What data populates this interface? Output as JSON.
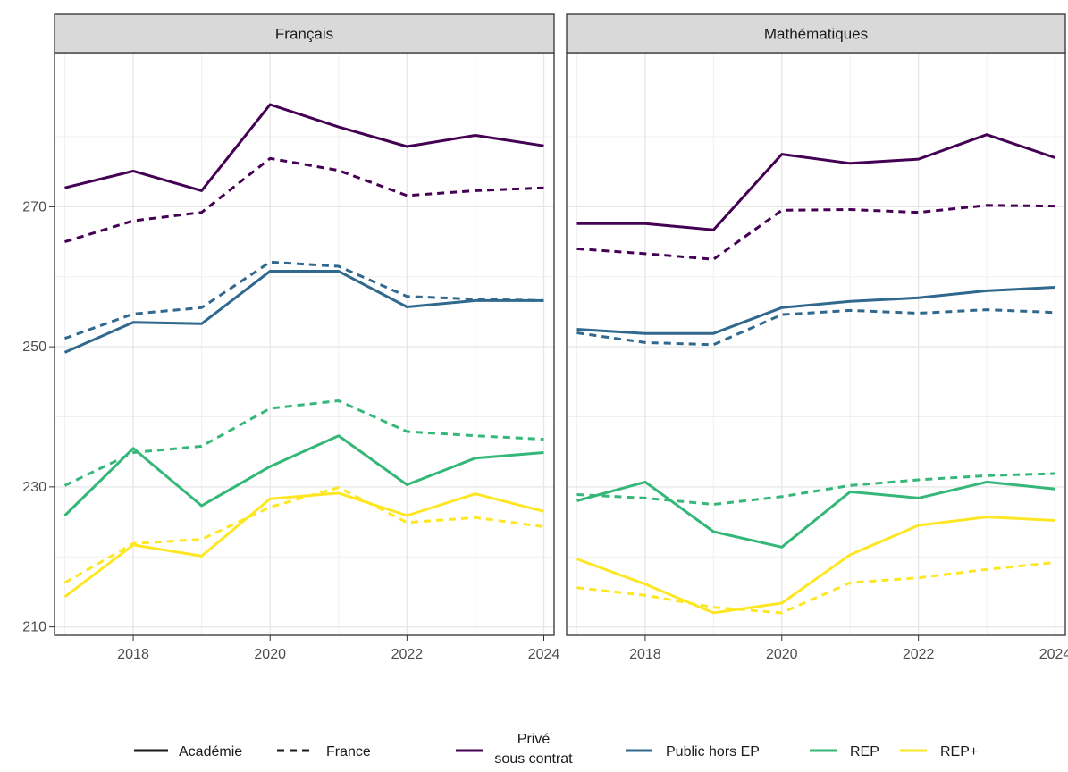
{
  "chart_data": {
    "type": "line",
    "x": [
      2017,
      2018,
      2019,
      2020,
      2021,
      2022,
      2023,
      2024
    ],
    "xticks": [
      2018,
      2020,
      2022,
      2024
    ],
    "xlim": [
      2016.85,
      2024.15
    ],
    "ylim": [
      208.8,
      292
    ],
    "yticks": [
      210,
      230,
      250,
      270
    ],
    "grid": true,
    "legend_position": "bottom",
    "colors": {
      "prive": "#440154",
      "public": "#31688e",
      "rep": "#35b779",
      "repplus": "#fde725"
    },
    "linetype_legend": [
      {
        "key": "solid",
        "label": "Académie"
      },
      {
        "key": "dashed",
        "label": "France"
      }
    ],
    "color_legend": [
      {
        "key": "prive",
        "label_lines": [
          "Privé",
          "sous contrat"
        ]
      },
      {
        "key": "public",
        "label_lines": [
          "Public hors EP"
        ]
      },
      {
        "key": "rep",
        "label_lines": [
          "REP"
        ]
      },
      {
        "key": "repplus",
        "label_lines": [
          "REP+"
        ]
      }
    ],
    "panels": [
      {
        "title": "Français",
        "series": [
          {
            "group": "prive",
            "linetype": "solid",
            "values": [
              272.7,
              275.1,
              272.3,
              284.6,
              281.4,
              278.6,
              280.2,
              278.7
            ]
          },
          {
            "group": "prive",
            "linetype": "dashed",
            "values": [
              265.0,
              268.0,
              269.2,
              276.9,
              275.2,
              271.6,
              272.3,
              272.7
            ]
          },
          {
            "group": "public",
            "linetype": "solid",
            "values": [
              249.2,
              253.5,
              253.3,
              260.8,
              260.8,
              255.7,
              256.6,
              256.6
            ]
          },
          {
            "group": "public",
            "linetype": "dashed",
            "values": [
              251.2,
              254.7,
              255.6,
              262.1,
              261.5,
              257.2,
              256.8,
              256.6
            ]
          },
          {
            "group": "rep",
            "linetype": "solid",
            "values": [
              225.9,
              235.5,
              227.3,
              232.9,
              237.3,
              230.3,
              234.1,
              234.9
            ]
          },
          {
            "group": "rep",
            "linetype": "dashed",
            "values": [
              230.2,
              234.9,
              235.8,
              241.2,
              242.3,
              237.9,
              237.3,
              236.8
            ]
          },
          {
            "group": "repplus",
            "linetype": "solid",
            "values": [
              214.3,
              221.7,
              220.1,
              228.3,
              229.1,
              225.9,
              229.0,
              226.5
            ]
          },
          {
            "group": "repplus",
            "linetype": "dashed",
            "values": [
              216.3,
              221.9,
              222.5,
              227.1,
              229.9,
              224.9,
              225.6,
              224.3
            ]
          }
        ]
      },
      {
        "title": "Mathématiques",
        "series": [
          {
            "group": "prive",
            "linetype": "solid",
            "values": [
              267.6,
              267.6,
              266.7,
              277.5,
              276.2,
              276.8,
              280.3,
              277.0
            ]
          },
          {
            "group": "prive",
            "linetype": "dashed",
            "values": [
              264.0,
              263.3,
              262.5,
              269.5,
              269.6,
              269.2,
              270.2,
              270.1
            ]
          },
          {
            "group": "public",
            "linetype": "solid",
            "values": [
              252.5,
              251.9,
              251.9,
              255.6,
              256.5,
              257.0,
              258.0,
              258.5
            ]
          },
          {
            "group": "public",
            "linetype": "dashed",
            "values": [
              252.0,
              250.6,
              250.3,
              254.6,
              255.2,
              254.8,
              255.3,
              254.9
            ]
          },
          {
            "group": "rep",
            "linetype": "solid",
            "values": [
              228.0,
              230.7,
              223.6,
              221.4,
              229.3,
              228.4,
              230.7,
              229.7
            ]
          },
          {
            "group": "rep",
            "linetype": "dashed",
            "values": [
              228.9,
              228.4,
              227.5,
              228.6,
              230.2,
              231.0,
              231.6,
              231.9
            ]
          },
          {
            "group": "repplus",
            "linetype": "solid",
            "values": [
              219.7,
              216.1,
              212.0,
              213.4,
              220.3,
              224.5,
              225.7,
              225.2
            ]
          },
          {
            "group": "repplus",
            "linetype": "dashed",
            "values": [
              215.6,
              214.5,
              212.8,
              212.0,
              216.3,
              217.0,
              218.2,
              219.2
            ]
          }
        ]
      }
    ]
  }
}
